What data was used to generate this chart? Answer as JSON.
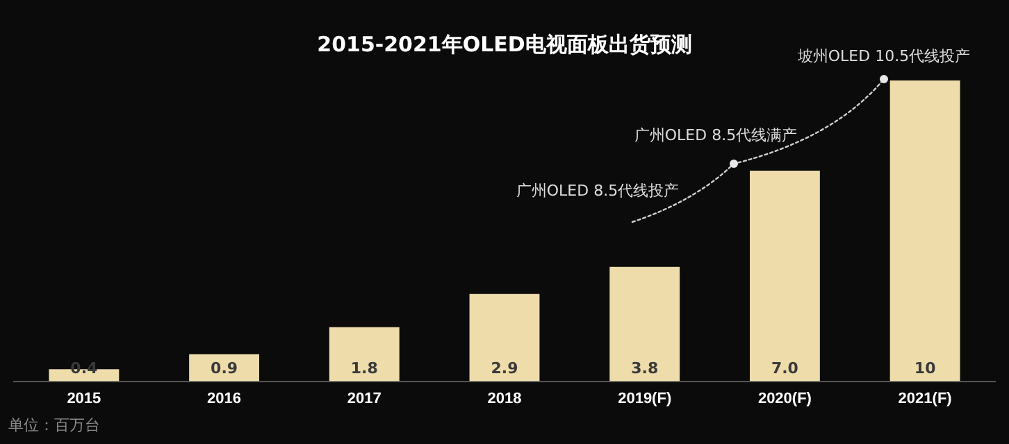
{
  "chart_data": {
    "type": "bar",
    "title": "2015-2021年OLED电视面板出货预测",
    "categories": [
      "2015",
      "2016",
      "2017",
      "2018",
      "2019(F)",
      "2020(F)",
      "2021(F)"
    ],
    "values": [
      0.4,
      0.9,
      1.8,
      2.9,
      3.8,
      7.0,
      10
    ],
    "value_labels": [
      "0.4",
      "0.9",
      "1.8",
      "2.9",
      "3.8",
      "7.0",
      "10"
    ],
    "color": "#eedcab",
    "legend": false,
    "annotations": [
      "广州OLED 8.5代线投产",
      "广州OLED 8.5代线满产",
      "坡州OLED 10.5代线投产",
      "单位：百万台"
    ]
  }
}
